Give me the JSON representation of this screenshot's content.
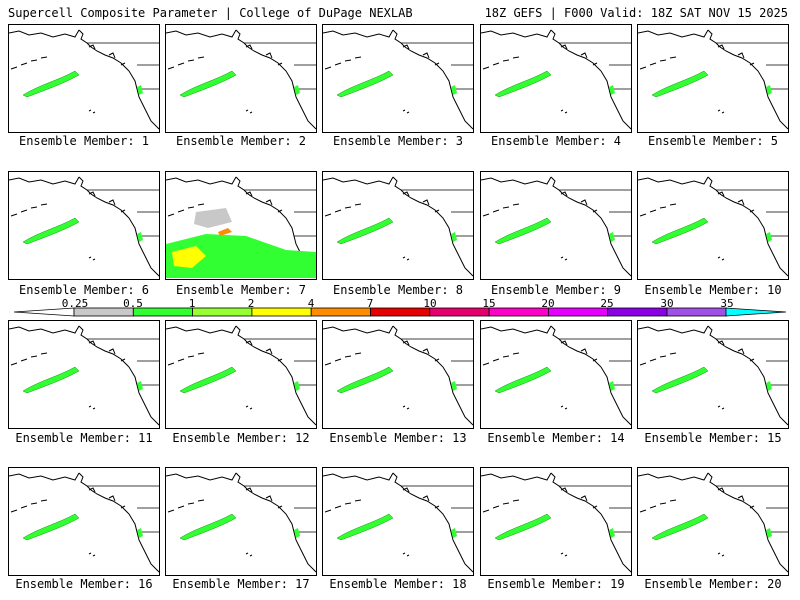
{
  "header": {
    "title_left": "Supercell Composite Parameter | College of DuPage NEXLAB",
    "title_right": "18Z GEFS | F000 Valid: 18Z SAT NOV 15 2025"
  },
  "members": [
    {
      "label": "Ensemble Member: 1"
    },
    {
      "label": "Ensemble Member: 2"
    },
    {
      "label": "Ensemble Member: 3"
    },
    {
      "label": "Ensemble Member: 4"
    },
    {
      "label": "Ensemble Member: 5"
    },
    {
      "label": "Ensemble Member: 6"
    },
    {
      "label": "Ensemble Member: 7"
    },
    {
      "label": "Ensemble Member: 8"
    },
    {
      "label": "Ensemble Member: 9"
    },
    {
      "label": "Ensemble Member: 10"
    },
    {
      "label": "Ensemble Member: 11"
    },
    {
      "label": "Ensemble Member: 12"
    },
    {
      "label": "Ensemble Member: 13"
    },
    {
      "label": "Ensemble Member: 14"
    },
    {
      "label": "Ensemble Member: 15"
    },
    {
      "label": "Ensemble Member: 16"
    },
    {
      "label": "Ensemble Member: 17"
    },
    {
      "label": "Ensemble Member: 18"
    },
    {
      "label": "Ensemble Member: 19"
    },
    {
      "label": "Ensemble Member: 20"
    }
  ],
  "colorbar": {
    "ticks": [
      "0.25",
      "0.5",
      "1",
      "2",
      "4",
      "7",
      "10",
      "15",
      "20",
      "25",
      "30",
      "35"
    ],
    "colors": [
      "#c8c8c8",
      "#32ff32",
      "#96ff32",
      "#ffff00",
      "#ff8c00",
      "#e60000",
      "#e6006e",
      "#ff00c8",
      "#e600ff",
      "#8c00e6",
      "#a050e6",
      "#00ffff"
    ]
  }
}
